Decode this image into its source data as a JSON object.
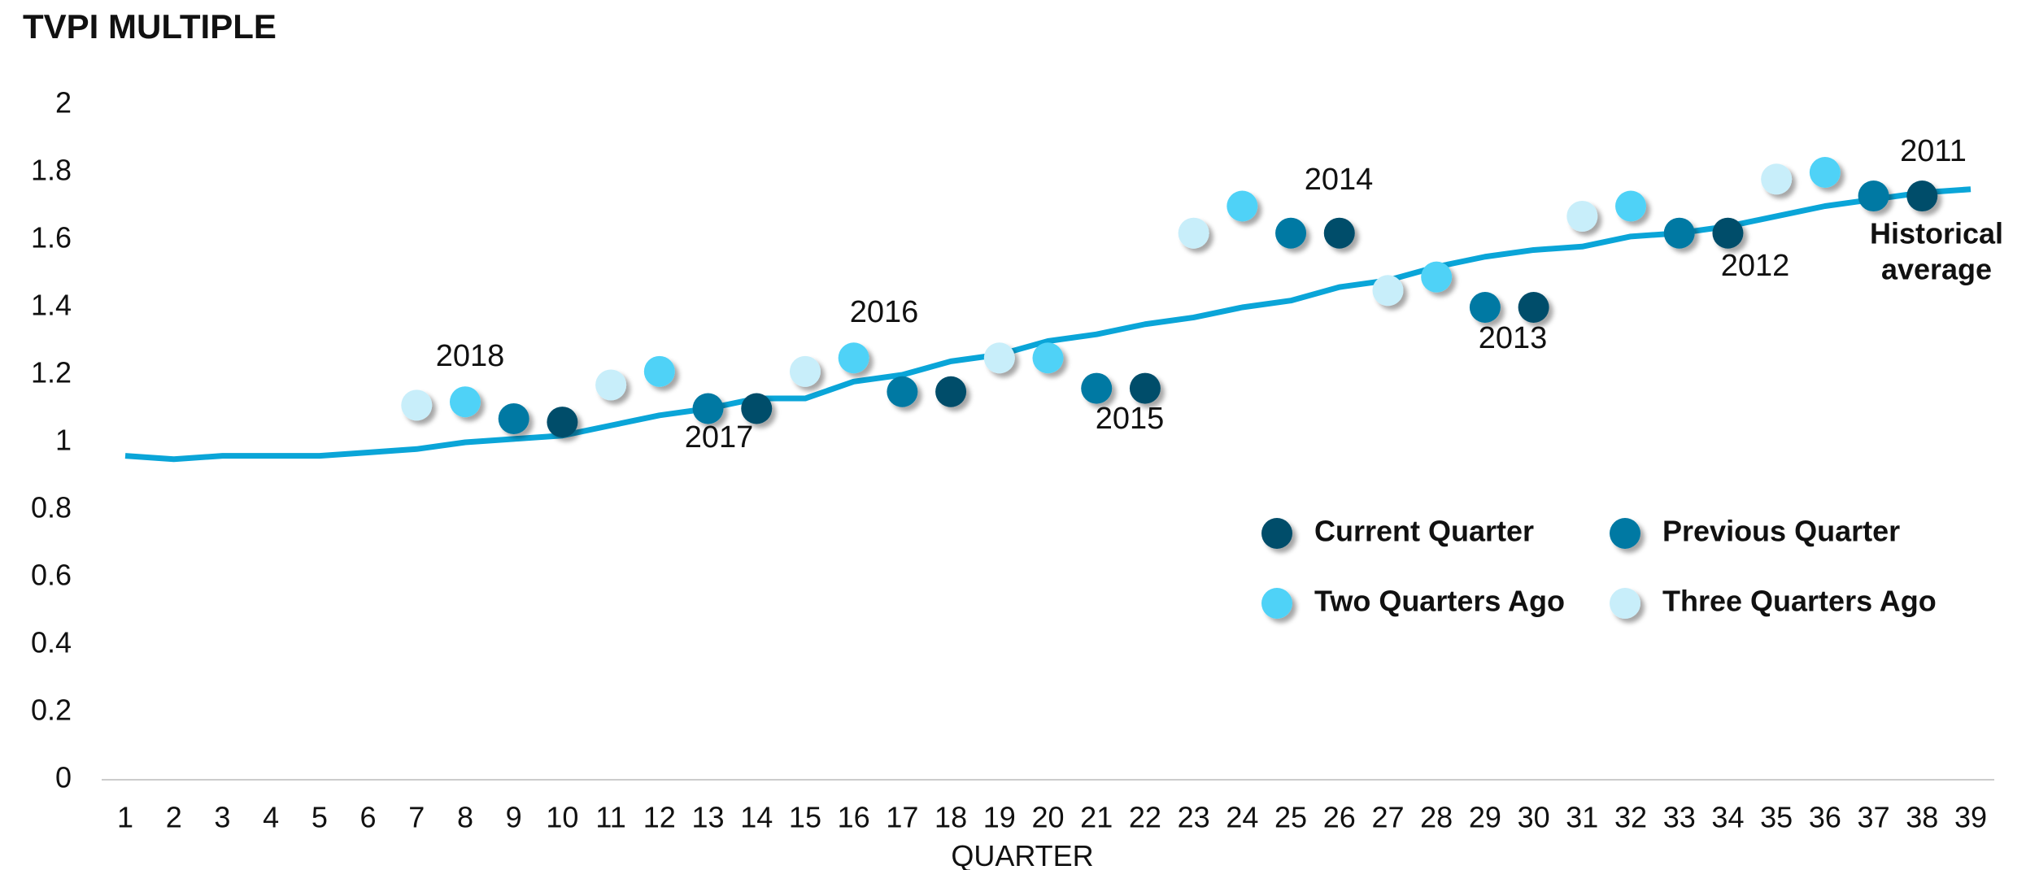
{
  "chart_data": {
    "type": "scatter",
    "title": "TVPI MULTIPLE",
    "x_label": "QUARTER",
    "x": [
      1,
      2,
      3,
      4,
      5,
      6,
      7,
      8,
      9,
      10,
      11,
      12,
      13,
      14,
      15,
      16,
      17,
      18,
      19,
      20,
      21,
      22,
      23,
      24,
      25,
      26,
      27,
      28,
      29,
      30,
      31,
      32,
      33,
      34,
      35,
      36,
      37,
      38,
      39
    ],
    "xlim": [
      1,
      39
    ],
    "xticks": [
      1,
      2,
      3,
      4,
      5,
      6,
      7,
      8,
      9,
      10,
      11,
      12,
      13,
      14,
      15,
      16,
      17,
      18,
      19,
      20,
      21,
      22,
      23,
      24,
      25,
      26,
      27,
      28,
      29,
      30,
      31,
      32,
      33,
      34,
      35,
      36,
      37,
      38,
      39
    ],
    "ylim": [
      0,
      2
    ],
    "yticks": [
      0,
      0.2,
      0.4,
      0.6,
      0.8,
      1,
      1.2,
      1.4,
      1.6,
      1.8,
      2
    ],
    "average": {
      "color": "#0aa5d8",
      "values": [
        0.96,
        0.95,
        0.96,
        0.96,
        0.96,
        0.97,
        0.98,
        1.0,
        1.01,
        1.02,
        1.05,
        1.08,
        1.1,
        1.13,
        1.13,
        1.18,
        1.2,
        1.24,
        1.26,
        1.3,
        1.32,
        1.35,
        1.37,
        1.4,
        1.42,
        1.46,
        1.48,
        1.52,
        1.55,
        1.57,
        1.58,
        1.61,
        1.62,
        1.64,
        1.67,
        1.7,
        1.72,
        1.74,
        1.75
      ]
    },
    "series": [
      {
        "name": "Current Quarter",
        "color": "#004e6b",
        "values": [
          null,
          null,
          null,
          null,
          null,
          null,
          null,
          null,
          null,
          1.06,
          null,
          null,
          null,
          1.1,
          null,
          null,
          null,
          1.15,
          null,
          null,
          null,
          1.16,
          null,
          null,
          null,
          1.62,
          null,
          null,
          null,
          1.4,
          null,
          null,
          null,
          1.62,
          null,
          null,
          null,
          1.73,
          null
        ]
      },
      {
        "name": "Previous Quarter",
        "color": "#0079a3",
        "values": [
          null,
          null,
          null,
          null,
          null,
          null,
          null,
          null,
          1.07,
          null,
          null,
          null,
          1.1,
          null,
          null,
          null,
          1.15,
          null,
          null,
          null,
          1.16,
          null,
          null,
          null,
          1.62,
          null,
          null,
          null,
          1.4,
          null,
          null,
          null,
          1.62,
          null,
          null,
          null,
          1.73,
          null,
          null
        ]
      },
      {
        "name": "Two Quarters Ago",
        "color": "#4fd2f7",
        "values": [
          null,
          null,
          null,
          null,
          null,
          null,
          null,
          1.12,
          null,
          null,
          null,
          1.21,
          null,
          null,
          null,
          1.25,
          null,
          null,
          null,
          1.25,
          null,
          null,
          null,
          1.7,
          null,
          null,
          null,
          1.49,
          null,
          null,
          null,
          1.7,
          null,
          null,
          null,
          1.8,
          null,
          null,
          null
        ]
      },
      {
        "name": "Three Quarters Ago",
        "color": "#c8eefa",
        "values": [
          null,
          null,
          null,
          null,
          null,
          null,
          1.11,
          null,
          null,
          null,
          1.17,
          null,
          null,
          null,
          1.21,
          null,
          null,
          null,
          1.25,
          null,
          null,
          null,
          1.62,
          null,
          null,
          null,
          1.45,
          null,
          null,
          null,
          1.67,
          null,
          null,
          null,
          1.78,
          null,
          null,
          null,
          null
        ]
      }
    ],
    "annotations": [
      "2018",
      "2017",
      "2016",
      "2015",
      "2014",
      "2013",
      "2012",
      "2011",
      "Historical",
      "average"
    ]
  }
}
